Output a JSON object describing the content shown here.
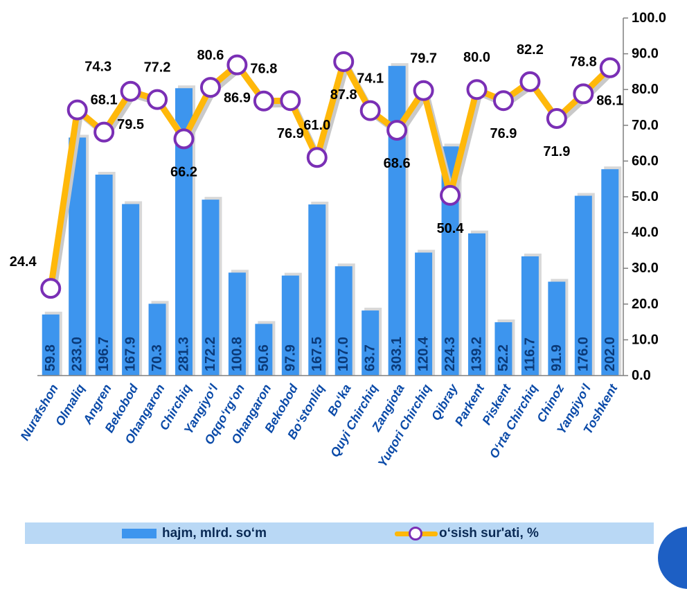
{
  "chart_data": {
    "type": "bar",
    "categories": [
      "Nurafshon",
      "Olmaliq",
      "Angren",
      "Bekobod",
      "Ohangaron",
      "Chirchiq",
      "Yangiyo‘l",
      "Oqqo‘rg‘on",
      "Ohangaron",
      "Bekobod",
      "Bo‘stonliq",
      "Bo‘ka",
      "Quyi Chirchiq",
      "Zangiota",
      "Yuqori Chirchiq",
      "Qibray",
      "Parkent",
      "Piskent",
      "O‘rta Chirchiq",
      "Chinoz",
      "Yangiyo‘l",
      "Toshkent"
    ],
    "series": [
      {
        "name": "hajm, mlrd. so‘m",
        "type": "bar",
        "color": "#3d95ee",
        "values": [
          59.8,
          233.0,
          196.7,
          167.9,
          70.3,
          281.3,
          172.2,
          100.8,
          50.6,
          97.9,
          167.5,
          107.0,
          63.7,
          303.1,
          120.4,
          224.3,
          139.2,
          52.2,
          116.7,
          91.9,
          176.0,
          202.0
        ],
        "labels": [
          "59.8",
          "233.0",
          "196.7",
          "167.9",
          "70.3",
          "281.3",
          "172.2",
          "100.8",
          "50.6",
          "97.9",
          "167.5",
          "107.0",
          "63.7",
          "303.1",
          "120.4",
          "224.3",
          "139.2",
          "52.2",
          "116.7",
          "91.9",
          "176.0",
          "202.0"
        ]
      },
      {
        "name": "o‘sish sur'ati, %",
        "type": "line",
        "color": "#ffb80a",
        "marker_color": "#7a2fb5",
        "axis": "right",
        "values": [
          24.4,
          74.3,
          68.1,
          79.5,
          77.2,
          66.2,
          80.6,
          86.9,
          76.8,
          76.9,
          61.0,
          87.8,
          74.1,
          68.6,
          79.7,
          50.4,
          80.0,
          76.9,
          82.2,
          71.9,
          78.8,
          86.1
        ],
        "labels": [
          "24.4",
          "74.3",
          "68.1",
          "79.5",
          "77.2",
          "66.2",
          "80.6",
          "86.9",
          "76.8",
          "76.9",
          "61.0",
          "87.8",
          "74.1",
          "68.6",
          "79.7",
          "50.4",
          "80.0",
          "76.9",
          "82.2",
          "71.9",
          "78.8",
          "86.1"
        ]
      }
    ],
    "bar_axis_max": 350,
    "right_axis": {
      "ylim": [
        0,
        100
      ],
      "ticks": [
        "0.0",
        "10.0",
        "20.0",
        "30.0",
        "40.0",
        "50.0",
        "60.0",
        "70.0",
        "80.0",
        "90.0",
        "100.0"
      ]
    },
    "grid": false,
    "legend": {
      "position": "bottom",
      "bar_label": "hajm, mlrd. so‘m",
      "line_label": "o‘sish sur'ati, %"
    }
  }
}
